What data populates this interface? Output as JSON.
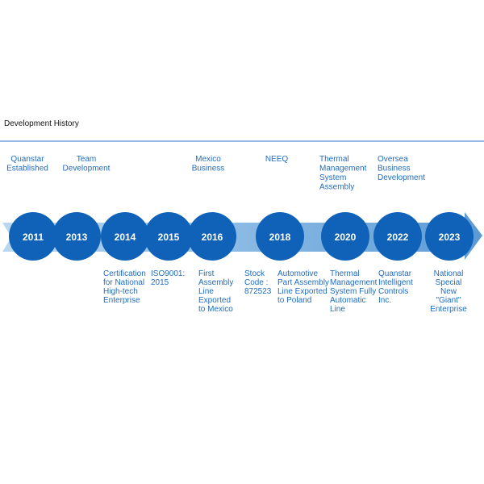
{
  "title": "Development History",
  "years": [
    "2011",
    "2013",
    "2014",
    "2015",
    "2016",
    "2018",
    "2020",
    "2022",
    "2023"
  ],
  "notes_above": [
    {
      "lines": [
        "Quanstar",
        "Established"
      ]
    },
    {
      "lines": [
        "Team",
        "Development"
      ]
    },
    {
      "lines": [
        "Mexico",
        "Business"
      ]
    },
    {
      "lines": [
        "NEEQ"
      ]
    },
    {
      "lines": [
        "Thermal",
        "Management",
        "System",
        "Assembly"
      ]
    },
    {
      "lines": [
        "Oversea",
        "Business",
        "Development"
      ]
    }
  ],
  "notes_below": [
    {
      "lines": [
        "Certification",
        "for National",
        "High-tech",
        "Enterprise"
      ]
    },
    {
      "lines": [
        "ISO9001:",
        "2015"
      ]
    },
    {
      "lines": [
        "First",
        "Assembly",
        "Line",
        "Exported",
        "to Mexico"
      ]
    },
    {
      "lines": [
        "Stock",
        "Code :",
        "872523"
      ]
    },
    {
      "lines": [
        "Automotive",
        "Part Assembly",
        "Line Exported",
        "to Poland"
      ]
    },
    {
      "lines": [
        "Thermal",
        "Management",
        "System Fully",
        "Automatic",
        "Line"
      ]
    },
    {
      "lines": [
        "Quanstar",
        "Intelligent",
        "Controls",
        "Inc."
      ]
    },
    {
      "lines": [
        "National",
        "Special",
        "New",
        "\"Giant\"",
        "Enterprise"
      ]
    }
  ]
}
